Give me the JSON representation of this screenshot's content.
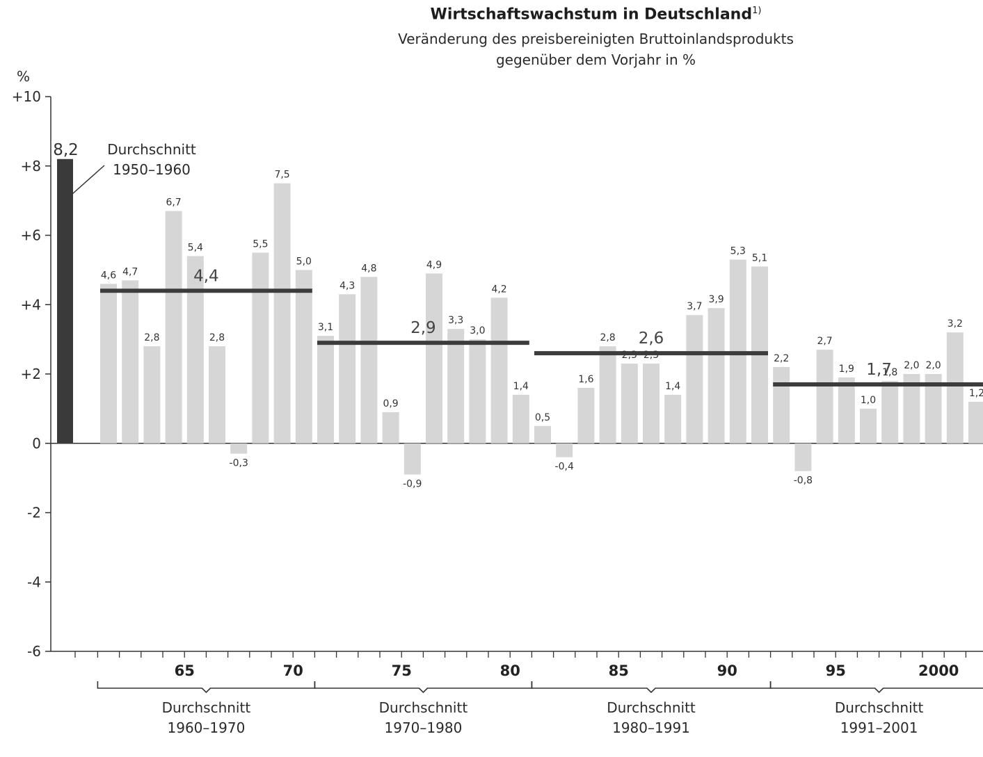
{
  "title": "Wirtschaftswachstum in Deutschland",
  "title_footnote": "1)",
  "subtitle_1": "Veränderung des preisbereinigten Bruttoinlandsprodukts",
  "subtitle_2": "gegenüber dem Vorjahr in %",
  "y_unit": "%",
  "chart_data": {
    "type": "bar",
    "ylim": [
      -6,
      10
    ],
    "y_ticks": [
      {
        "v": 10,
        "label": "+10"
      },
      {
        "v": 8,
        "label": "+8"
      },
      {
        "v": 6,
        "label": "+6"
      },
      {
        "v": 4,
        "label": "+4"
      },
      {
        "v": 2,
        "label": "+2"
      },
      {
        "v": 0,
        "label": "0"
      },
      {
        "v": -2,
        "label": "-2"
      },
      {
        "v": -4,
        "label": "-4"
      },
      {
        "v": -6,
        "label": "-6"
      }
    ],
    "x_labels": [
      {
        "year": 1965,
        "label": "65"
      },
      {
        "year": 1970,
        "label": "70"
      },
      {
        "year": 1975,
        "label": "75"
      },
      {
        "year": 1980,
        "label": "80"
      },
      {
        "year": 1985,
        "label": "85"
      },
      {
        "year": 1990,
        "label": "90"
      },
      {
        "year": 1995,
        "label": "95"
      },
      {
        "year": 2000,
        "label": "2000"
      }
    ],
    "avg_bar": {
      "value": 8.2,
      "label": "8,2",
      "annotation_1": "Durchschnitt",
      "annotation_2": "1950–1960",
      "color": "#3a3a3a"
    },
    "bar_color": "#d6d6d6",
    "avg_line_color": "#3c3c3c",
    "series": [
      {
        "year": 1961,
        "value": 4.6,
        "label": "4,6"
      },
      {
        "year": 1962,
        "value": 4.7,
        "label": "4,7"
      },
      {
        "year": 1963,
        "value": 2.8,
        "label": "2,8"
      },
      {
        "year": 1964,
        "value": 6.7,
        "label": "6,7"
      },
      {
        "year": 1965,
        "value": 5.4,
        "label": "5,4"
      },
      {
        "year": 1966,
        "value": 2.8,
        "label": "2,8"
      },
      {
        "year": 1967,
        "value": -0.3,
        "label": "-0,3"
      },
      {
        "year": 1968,
        "value": 5.5,
        "label": "5,5"
      },
      {
        "year": 1969,
        "value": 7.5,
        "label": "7,5"
      },
      {
        "year": 1970,
        "value": 5.0,
        "label": "5,0"
      },
      {
        "year": 1971,
        "value": 3.1,
        "label": "3,1"
      },
      {
        "year": 1972,
        "value": 4.3,
        "label": "4,3"
      },
      {
        "year": 1973,
        "value": 4.8,
        "label": "4,8"
      },
      {
        "year": 1974,
        "value": 0.9,
        "label": "0,9"
      },
      {
        "year": 1975,
        "value": -0.9,
        "label": "-0,9"
      },
      {
        "year": 1976,
        "value": 4.9,
        "label": "4,9"
      },
      {
        "year": 1977,
        "value": 3.3,
        "label": "3,3"
      },
      {
        "year": 1978,
        "value": 3.0,
        "label": "3,0"
      },
      {
        "year": 1979,
        "value": 4.2,
        "label": "4,2"
      },
      {
        "year": 1980,
        "value": 1.4,
        "label": "1,4"
      },
      {
        "year": 1981,
        "value": 0.5,
        "label": "0,5"
      },
      {
        "year": 1982,
        "value": -0.4,
        "label": "-0,4"
      },
      {
        "year": 1983,
        "value": 1.6,
        "label": "1,6"
      },
      {
        "year": 1984,
        "value": 2.8,
        "label": "2,8"
      },
      {
        "year": 1985,
        "value": 2.3,
        "label": "2,3"
      },
      {
        "year": 1986,
        "value": 2.3,
        "label": "2,3"
      },
      {
        "year": 1987,
        "value": 1.4,
        "label": "1,4"
      },
      {
        "year": 1988,
        "value": 3.7,
        "label": "3,7"
      },
      {
        "year": 1989,
        "value": 3.9,
        "label": "3,9"
      },
      {
        "year": 1990,
        "value": 5.3,
        "label": "5,3"
      },
      {
        "year": 1991,
        "value": 5.1,
        "label": "5,1"
      },
      {
        "year": 1992,
        "value": 2.2,
        "label": "2,2"
      },
      {
        "year": 1993,
        "value": -0.8,
        "label": "-0,8"
      },
      {
        "year": 1994,
        "value": 2.7,
        "label": "2,7"
      },
      {
        "year": 1995,
        "value": 1.9,
        "label": "1,9"
      },
      {
        "year": 1996,
        "value": 1.0,
        "label": "1,0"
      },
      {
        "year": 1997,
        "value": 1.8,
        "label": "1,8"
      },
      {
        "year": 1998,
        "value": 2.0,
        "label": "2,0"
      },
      {
        "year": 1999,
        "value": 2.0,
        "label": "2,0"
      },
      {
        "year": 2000,
        "value": 3.2,
        "label": "3,2"
      },
      {
        "year": 2001,
        "value": 1.2,
        "label": "1,2"
      }
    ],
    "period_averages": [
      {
        "period": "1960–1970",
        "from": 1961,
        "to": 1970,
        "value": 4.4,
        "label": "4,4",
        "bracket_1": "Durchschnitt",
        "bracket_2": "1960–1970"
      },
      {
        "period": "1970–1980",
        "from": 1971,
        "to": 1980,
        "value": 2.9,
        "label": "2,9",
        "bracket_1": "Durchschnitt",
        "bracket_2": "1970–1980"
      },
      {
        "period": "1980–1991",
        "from": 1981,
        "to": 1991,
        "value": 2.6,
        "label": "2,6",
        "bracket_1": "Durchschnitt",
        "bracket_2": "1980–1991"
      },
      {
        "period": "1991–2001",
        "from": 1992,
        "to": 2001,
        "value": 1.7,
        "label": "1,7",
        "bracket_1": "Durchschnitt",
        "bracket_2": "1991–2001"
      }
    ]
  }
}
